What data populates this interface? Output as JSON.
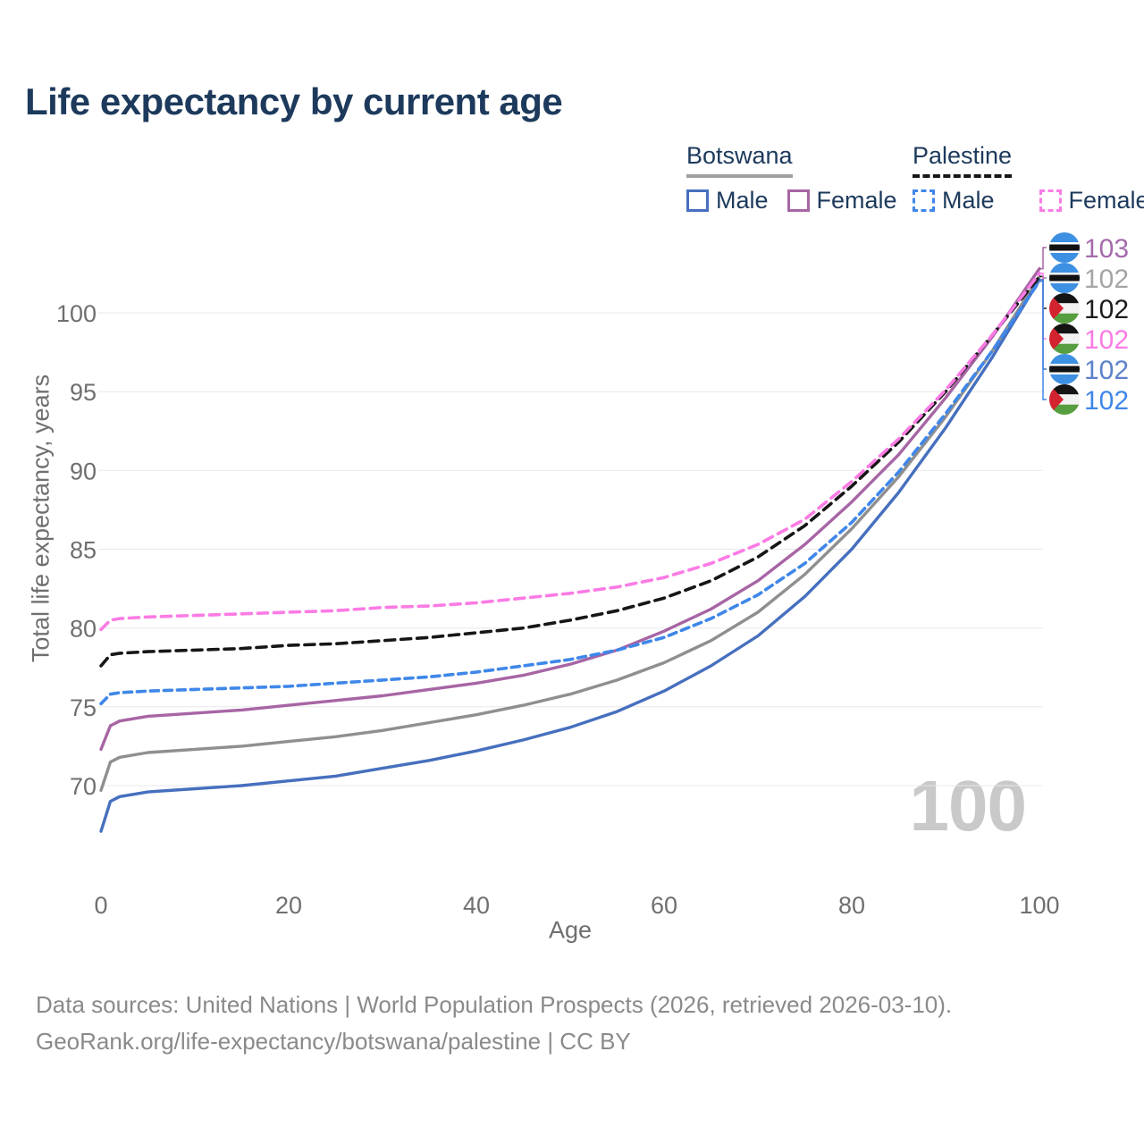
{
  "title": "Life expectancy by current age",
  "watermark": "100",
  "legend": {
    "groups": [
      {
        "name": "Botswana",
        "line_color": "#a0a0a0",
        "line_style": "solid",
        "items": [
          {
            "label": "Male",
            "color": "#466fbe",
            "style": "solid"
          },
          {
            "label": "Female",
            "color": "#a765a4",
            "style": "solid"
          }
        ]
      },
      {
        "name": "Palestine",
        "line_color": "#161616",
        "line_style": "dashed",
        "items": [
          {
            "label": "Male",
            "color": "#3f87e9",
            "style": "dashed"
          },
          {
            "label": "Female",
            "color": "#fb7be4",
            "style": "dashed"
          }
        ]
      }
    ]
  },
  "axes": {
    "y_title": "Total life expectancy, years",
    "x_title": "Age",
    "y_ticks": [
      70,
      75,
      80,
      85,
      90,
      95,
      100
    ],
    "x_ticks": [
      0,
      20,
      40,
      60,
      80,
      100
    ]
  },
  "chart_data": {
    "type": "line",
    "title": "Life expectancy by current age",
    "xlabel": "Age",
    "ylabel": "Total life expectancy, years",
    "xlim": [
      0,
      100
    ],
    "ylim": [
      66,
      104
    ],
    "grid": "horizontal",
    "legend_position": "top-right",
    "x": [
      0,
      1,
      2,
      5,
      10,
      15,
      20,
      25,
      30,
      35,
      40,
      45,
      50,
      55,
      60,
      65,
      70,
      75,
      80,
      85,
      90,
      95,
      100
    ],
    "series": [
      {
        "name": "Botswana (both sexes)",
        "country": "Botswana",
        "sex": "both",
        "color": "#8f8f8f",
        "dash": null,
        "values": [
          69.7,
          71.5,
          71.8,
          72.1,
          72.3,
          72.5,
          72.8,
          73.1,
          73.5,
          74.0,
          74.5,
          75.1,
          75.8,
          76.7,
          77.8,
          79.2,
          81.0,
          83.4,
          86.3,
          89.6,
          93.4,
          97.6,
          102.3
        ]
      },
      {
        "name": "Botswana Male",
        "country": "Botswana",
        "sex": "male",
        "color": "#466fbe",
        "dash": null,
        "values": [
          67.1,
          69.0,
          69.3,
          69.6,
          69.8,
          70.0,
          70.3,
          70.6,
          71.1,
          71.6,
          72.2,
          72.9,
          73.7,
          74.7,
          76.0,
          77.6,
          79.5,
          82.0,
          85.0,
          88.6,
          92.7,
          97.2,
          102.1
        ]
      },
      {
        "name": "Botswana Female",
        "country": "Botswana",
        "sex": "female",
        "color": "#a765a4",
        "dash": null,
        "values": [
          72.3,
          73.8,
          74.1,
          74.4,
          74.6,
          74.8,
          75.1,
          75.4,
          75.7,
          76.1,
          76.5,
          77.0,
          77.7,
          78.6,
          79.8,
          81.2,
          83.0,
          85.3,
          88.0,
          91.0,
          94.6,
          98.5,
          102.8
        ]
      },
      {
        "name": "Palestine Male",
        "country": "Palestine",
        "sex": "male",
        "color": "#3f87e9",
        "dash": "9 6",
        "values": [
          75.2,
          75.8,
          75.9,
          76.0,
          76.1,
          76.2,
          76.3,
          76.5,
          76.7,
          76.9,
          77.2,
          77.6,
          78.0,
          78.6,
          79.4,
          80.6,
          82.1,
          84.1,
          86.7,
          89.9,
          93.6,
          97.6,
          102.0
        ]
      },
      {
        "name": "Palestine (both sexes)",
        "country": "Palestine",
        "sex": "both",
        "color": "#161616",
        "dash": "11 7",
        "values": [
          77.6,
          78.3,
          78.4,
          78.5,
          78.6,
          78.7,
          78.9,
          79.0,
          79.2,
          79.4,
          79.7,
          80.0,
          80.5,
          81.1,
          81.9,
          83.0,
          84.5,
          86.5,
          89.0,
          91.8,
          95.0,
          98.6,
          102.3
        ]
      },
      {
        "name": "Palestine Female",
        "country": "Palestine",
        "sex": "female",
        "color": "#fb7be4",
        "dash": "11 7",
        "values": [
          79.9,
          80.5,
          80.6,
          80.7,
          80.8,
          80.9,
          81.0,
          81.1,
          81.3,
          81.4,
          81.6,
          81.9,
          82.2,
          82.6,
          83.2,
          84.1,
          85.3,
          86.9,
          89.3,
          92.0,
          95.1,
          98.6,
          102.5
        ]
      }
    ],
    "end_labels": [
      {
        "series": "Botswana Female",
        "flag": "botswana",
        "value": 103,
        "color": "#a66aaa"
      },
      {
        "series": "Botswana (both sexes)",
        "flag": "botswana",
        "value": 102,
        "color": "#a5a5a5"
      },
      {
        "series": "Palestine (both sexes)",
        "flag": "palestine",
        "value": 102,
        "color": "#1c1c1c"
      },
      {
        "series": "Palestine Female",
        "flag": "palestine",
        "value": 102,
        "color": "#fb7be4"
      },
      {
        "series": "Botswana Male",
        "flag": "botswana",
        "value": 102,
        "color": "#5d82cb"
      },
      {
        "series": "Palestine Male",
        "flag": "palestine",
        "value": 102,
        "color": "#3f87e9"
      }
    ],
    "flag_colors": {
      "botswana_blue": "#3d90e2",
      "palestine_black": "#141414",
      "palestine_white": "#f2f2f2",
      "palestine_green": "#579e40",
      "palestine_red": "#d2232f"
    }
  },
  "footer": {
    "line1": "Data sources: United Nations | World Population Prospects (2026, retrieved 2026-03-10).",
    "line2": "GeoRank.org/life-expectancy/botswana/palestine | CC BY"
  }
}
